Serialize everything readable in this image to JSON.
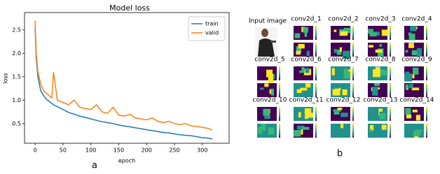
{
  "chart_data": {
    "type": "line",
    "title": "Model loss",
    "x_label": "epoch",
    "y_label": "loss",
    "x": [
      0,
      2,
      5,
      10,
      15,
      20,
      30,
      33,
      40,
      50,
      60,
      70,
      80,
      90,
      100,
      110,
      120,
      130,
      140,
      150,
      160,
      170,
      180,
      190,
      200,
      210,
      220,
      230,
      240,
      250,
      260,
      270,
      280,
      290,
      300,
      310,
      318
    ],
    "series": [
      {
        "name": "train",
        "color": "#1f77b4",
        "values": [
          2.55,
          1.9,
          1.5,
          1.2,
          1.1,
          1.02,
          0.93,
          0.9,
          0.86,
          0.8,
          0.74,
          0.7,
          0.66,
          0.63,
          0.6,
          0.57,
          0.54,
          0.52,
          0.5,
          0.47,
          0.45,
          0.43,
          0.41,
          0.39,
          0.37,
          0.35,
          0.33,
          0.31,
          0.3,
          0.28,
          0.26,
          0.25,
          0.24,
          0.22,
          0.2,
          0.19,
          0.17
        ]
      },
      {
        "name": "valid",
        "color": "#ff7f0e",
        "values": [
          2.7,
          2.0,
          1.6,
          1.35,
          1.2,
          1.15,
          1.05,
          1.6,
          1.0,
          0.95,
          0.9,
          1.0,
          0.85,
          0.82,
          0.8,
          0.9,
          0.75,
          0.72,
          0.85,
          0.68,
          0.66,
          0.7,
          0.62,
          0.6,
          0.58,
          0.62,
          0.55,
          0.52,
          0.55,
          0.5,
          0.48,
          0.5,
          0.45,
          0.44,
          0.42,
          0.4,
          0.36
        ]
      }
    ],
    "xlim": [
      -19,
      348
    ],
    "ylim": [
      0.08,
      2.87
    ],
    "xticks": [
      0,
      50,
      100,
      150,
      200,
      250,
      300
    ],
    "yticks": [
      0.5,
      {
        "value": 1,
        "label": "1.0"
      },
      1.5,
      {
        "value": 2,
        "label": "2.0"
      },
      2.5
    ],
    "grid": false,
    "legend": "upper right"
  },
  "panel_labels": [
    "a",
    "b"
  ],
  "feature_maps": {
    "input_label": "Input image",
    "layers": [
      "conv2d_1",
      "conv2d_2",
      "conv2d_3",
      "conv2d_4",
      "conv2d_5",
      "conv2d_6",
      "conv2d_7",
      "conv2d_8",
      "conv2d_9",
      "conv2d_10",
      "conv2d_11",
      "conv2d_12",
      "conv2d_13",
      "conv2d_14"
    ]
  }
}
